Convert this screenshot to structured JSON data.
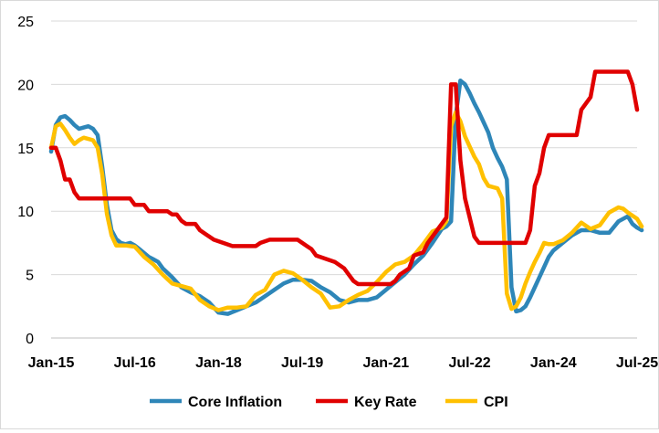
{
  "chart_data": {
    "type": "line",
    "title": "",
    "xlabel": "",
    "ylabel": "",
    "ylim": [
      0,
      25
    ],
    "y_ticks": [
      0,
      5,
      10,
      15,
      20,
      25
    ],
    "x_ticks": [
      "Jan-15",
      "Jul-16",
      "Jan-18",
      "Jul-19",
      "Jan-21",
      "Jul-22",
      "Jan-24",
      "Jul-25"
    ],
    "x_range": [
      "2015-01",
      "2025-07"
    ],
    "grid": "horizontal",
    "legend": "bottom",
    "series": [
      {
        "name": "Core Inflation",
        "color": "#2E86B8",
        "points": [
          [
            "2015-01",
            14.7
          ],
          [
            "2015-02",
            16.8
          ],
          [
            "2015-03",
            17.4
          ],
          [
            "2015-04",
            17.5
          ],
          [
            "2015-05",
            17.2
          ],
          [
            "2015-06",
            16.8
          ],
          [
            "2015-07",
            16.5
          ],
          [
            "2015-08",
            16.6
          ],
          [
            "2015-09",
            16.7
          ],
          [
            "2015-10",
            16.5
          ],
          [
            "2015-11",
            16.0
          ],
          [
            "2015-12",
            13.5
          ],
          [
            "2016-01",
            10.5
          ],
          [
            "2016-02",
            8.5
          ],
          [
            "2016-03",
            7.8
          ],
          [
            "2016-04",
            7.5
          ],
          [
            "2016-05",
            7.4
          ],
          [
            "2016-06",
            7.5
          ],
          [
            "2016-07",
            7.3
          ],
          [
            "2016-08",
            7.0
          ],
          [
            "2016-09",
            6.7
          ],
          [
            "2016-10",
            6.4
          ],
          [
            "2016-11",
            6.2
          ],
          [
            "2016-12",
            6.0
          ],
          [
            "2017-01",
            5.5
          ],
          [
            "2017-03",
            4.8
          ],
          [
            "2017-05",
            4.0
          ],
          [
            "2017-07",
            3.6
          ],
          [
            "2017-09",
            3.3
          ],
          [
            "2017-11",
            2.8
          ],
          [
            "2018-01",
            2.0
          ],
          [
            "2018-03",
            1.9
          ],
          [
            "2018-05",
            2.2
          ],
          [
            "2018-07",
            2.5
          ],
          [
            "2018-09",
            2.8
          ],
          [
            "2018-11",
            3.3
          ],
          [
            "2019-01",
            3.8
          ],
          [
            "2019-03",
            4.3
          ],
          [
            "2019-05",
            4.6
          ],
          [
            "2019-07",
            4.6
          ],
          [
            "2019-09",
            4.5
          ],
          [
            "2019-11",
            4.0
          ],
          [
            "2020-01",
            3.6
          ],
          [
            "2020-03",
            3.0
          ],
          [
            "2020-05",
            2.8
          ],
          [
            "2020-07",
            3.0
          ],
          [
            "2020-09",
            3.0
          ],
          [
            "2020-11",
            3.2
          ],
          [
            "2021-01",
            3.8
          ],
          [
            "2021-03",
            4.4
          ],
          [
            "2021-05",
            5.0
          ],
          [
            "2021-07",
            5.8
          ],
          [
            "2021-09",
            6.5
          ],
          [
            "2021-11",
            7.5
          ],
          [
            "2022-01",
            8.6
          ],
          [
            "2022-02",
            8.8
          ],
          [
            "2022-03",
            9.2
          ],
          [
            "2022-04",
            17.5
          ],
          [
            "2022-05",
            20.3
          ],
          [
            "2022-06",
            20.0
          ],
          [
            "2022-07",
            19.3
          ],
          [
            "2022-08",
            18.5
          ],
          [
            "2022-09",
            17.8
          ],
          [
            "2022-10",
            17.0
          ],
          [
            "2022-11",
            16.2
          ],
          [
            "2022-12",
            15.0
          ],
          [
            "2023-01",
            14.2
          ],
          [
            "2023-02",
            13.5
          ],
          [
            "2023-03",
            12.5
          ],
          [
            "2023-04",
            4.0
          ],
          [
            "2023-05",
            2.1
          ],
          [
            "2023-06",
            2.2
          ],
          [
            "2023-07",
            2.5
          ],
          [
            "2023-08",
            3.2
          ],
          [
            "2023-09",
            4.0
          ],
          [
            "2023-10",
            4.8
          ],
          [
            "2023-11",
            5.6
          ],
          [
            "2023-12",
            6.4
          ],
          [
            "2024-01",
            6.9
          ],
          [
            "2024-03",
            7.5
          ],
          [
            "2024-05",
            8.1
          ],
          [
            "2024-07",
            8.5
          ],
          [
            "2024-09",
            8.5
          ],
          [
            "2024-11",
            8.3
          ],
          [
            "2025-01",
            8.3
          ],
          [
            "2025-03",
            9.2
          ],
          [
            "2025-05",
            9.6
          ],
          [
            "2025-06",
            9.0
          ],
          [
            "2025-07",
            8.7
          ],
          [
            "2025-08",
            8.5
          ]
        ]
      },
      {
        "name": "Key Rate",
        "color": "#E00000",
        "points": [
          [
            "2015-01",
            15.0
          ],
          [
            "2015-02",
            15.0
          ],
          [
            "2015-03",
            14.0
          ],
          [
            "2015-04",
            12.5
          ],
          [
            "2015-05",
            12.5
          ],
          [
            "2015-06",
            11.5
          ],
          [
            "2015-07",
            11.0
          ],
          [
            "2015-12",
            11.0
          ],
          [
            "2016-05",
            11.0
          ],
          [
            "2016-06",
            11.0
          ],
          [
            "2016-07",
            10.5
          ],
          [
            "2016-09",
            10.5
          ],
          [
            "2016-10",
            10.0
          ],
          [
            "2017-02",
            10.0
          ],
          [
            "2017-03",
            9.75
          ],
          [
            "2017-04",
            9.75
          ],
          [
            "2017-05",
            9.25
          ],
          [
            "2017-06",
            9.0
          ],
          [
            "2017-08",
            9.0
          ],
          [
            "2017-09",
            8.5
          ],
          [
            "2017-10",
            8.25
          ],
          [
            "2017-12",
            7.75
          ],
          [
            "2018-02",
            7.5
          ],
          [
            "2018-04",
            7.25
          ],
          [
            "2018-09",
            7.25
          ],
          [
            "2018-10",
            7.5
          ],
          [
            "2018-12",
            7.75
          ],
          [
            "2019-06",
            7.75
          ],
          [
            "2019-07",
            7.5
          ],
          [
            "2019-08",
            7.25
          ],
          [
            "2019-09",
            7.0
          ],
          [
            "2019-10",
            6.5
          ],
          [
            "2019-12",
            6.25
          ],
          [
            "2020-02",
            6.0
          ],
          [
            "2020-04",
            5.5
          ],
          [
            "2020-06",
            4.5
          ],
          [
            "2020-07",
            4.25
          ],
          [
            "2021-02",
            4.25
          ],
          [
            "2021-03",
            4.5
          ],
          [
            "2021-04",
            5.0
          ],
          [
            "2021-06",
            5.5
          ],
          [
            "2021-07",
            6.5
          ],
          [
            "2021-09",
            6.75
          ],
          [
            "2021-10",
            7.5
          ],
          [
            "2021-12",
            8.5
          ],
          [
            "2022-02",
            9.5
          ],
          [
            "2022-03",
            20.0
          ],
          [
            "2022-04",
            20.0
          ],
          [
            "2022-05",
            14.0
          ],
          [
            "2022-06",
            11.0
          ],
          [
            "2022-07",
            9.5
          ],
          [
            "2022-08",
            8.0
          ],
          [
            "2022-09",
            7.5
          ],
          [
            "2023-07",
            7.5
          ],
          [
            "2023-08",
            8.5
          ],
          [
            "2023-09",
            12.0
          ],
          [
            "2023-10",
            13.0
          ],
          [
            "2023-11",
            15.0
          ],
          [
            "2023-12",
            16.0
          ],
          [
            "2024-06",
            16.0
          ],
          [
            "2024-07",
            18.0
          ],
          [
            "2024-09",
            19.0
          ],
          [
            "2024-10",
            21.0
          ],
          [
            "2025-05",
            21.0
          ],
          [
            "2025-06",
            20.0
          ],
          [
            "2025-07",
            18.0
          ]
        ]
      },
      {
        "name": "CPI",
        "color": "#FFC000",
        "points": [
          [
            "2015-01",
            15.0
          ],
          [
            "2015-02",
            16.7
          ],
          [
            "2015-03",
            16.9
          ],
          [
            "2015-04",
            16.4
          ],
          [
            "2015-05",
            15.8
          ],
          [
            "2015-06",
            15.3
          ],
          [
            "2015-07",
            15.6
          ],
          [
            "2015-08",
            15.8
          ],
          [
            "2015-09",
            15.7
          ],
          [
            "2015-10",
            15.6
          ],
          [
            "2015-11",
            15.0
          ],
          [
            "2015-12",
            12.9
          ],
          [
            "2016-01",
            9.8
          ],
          [
            "2016-02",
            8.1
          ],
          [
            "2016-03",
            7.3
          ],
          [
            "2016-05",
            7.3
          ],
          [
            "2016-07",
            7.2
          ],
          [
            "2016-09",
            6.4
          ],
          [
            "2016-11",
            5.8
          ],
          [
            "2017-01",
            5.0
          ],
          [
            "2017-03",
            4.3
          ],
          [
            "2017-05",
            4.1
          ],
          [
            "2017-07",
            3.9
          ],
          [
            "2017-09",
            3.0
          ],
          [
            "2017-11",
            2.5
          ],
          [
            "2018-01",
            2.2
          ],
          [
            "2018-03",
            2.4
          ],
          [
            "2018-05",
            2.4
          ],
          [
            "2018-07",
            2.5
          ],
          [
            "2018-09",
            3.4
          ],
          [
            "2018-11",
            3.8
          ],
          [
            "2019-01",
            5.0
          ],
          [
            "2019-03",
            5.3
          ],
          [
            "2019-05",
            5.1
          ],
          [
            "2019-07",
            4.6
          ],
          [
            "2019-09",
            4.0
          ],
          [
            "2019-11",
            3.5
          ],
          [
            "2020-01",
            2.4
          ],
          [
            "2020-03",
            2.5
          ],
          [
            "2020-05",
            3.0
          ],
          [
            "2020-07",
            3.4
          ],
          [
            "2020-09",
            3.7
          ],
          [
            "2020-11",
            4.4
          ],
          [
            "2021-01",
            5.2
          ],
          [
            "2021-03",
            5.8
          ],
          [
            "2021-05",
            6.0
          ],
          [
            "2021-07",
            6.5
          ],
          [
            "2021-09",
            7.4
          ],
          [
            "2021-11",
            8.4
          ],
          [
            "2022-01",
            8.7
          ],
          [
            "2022-02",
            9.2
          ],
          [
            "2022-03",
            16.7
          ],
          [
            "2022-04",
            17.8
          ],
          [
            "2022-05",
            17.1
          ],
          [
            "2022-06",
            15.9
          ],
          [
            "2022-07",
            15.1
          ],
          [
            "2022-08",
            14.3
          ],
          [
            "2022-09",
            13.7
          ],
          [
            "2022-10",
            12.6
          ],
          [
            "2022-11",
            12.0
          ],
          [
            "2022-12",
            11.9
          ],
          [
            "2023-01",
            11.8
          ],
          [
            "2023-02",
            11.0
          ],
          [
            "2023-03",
            3.5
          ],
          [
            "2023-04",
            2.3
          ],
          [
            "2023-05",
            2.5
          ],
          [
            "2023-06",
            3.2
          ],
          [
            "2023-07",
            4.3
          ],
          [
            "2023-08",
            5.2
          ],
          [
            "2023-09",
            6.0
          ],
          [
            "2023-10",
            6.7
          ],
          [
            "2023-11",
            7.5
          ],
          [
            "2023-12",
            7.4
          ],
          [
            "2024-01",
            7.4
          ],
          [
            "2024-03",
            7.7
          ],
          [
            "2024-05",
            8.3
          ],
          [
            "2024-07",
            9.1
          ],
          [
            "2024-09",
            8.6
          ],
          [
            "2024-11",
            8.9
          ],
          [
            "2025-01",
            9.9
          ],
          [
            "2025-03",
            10.3
          ],
          [
            "2025-04",
            10.2
          ],
          [
            "2025-05",
            9.9
          ],
          [
            "2025-07",
            9.4
          ],
          [
            "2025-08",
            8.8
          ]
        ]
      }
    ]
  }
}
